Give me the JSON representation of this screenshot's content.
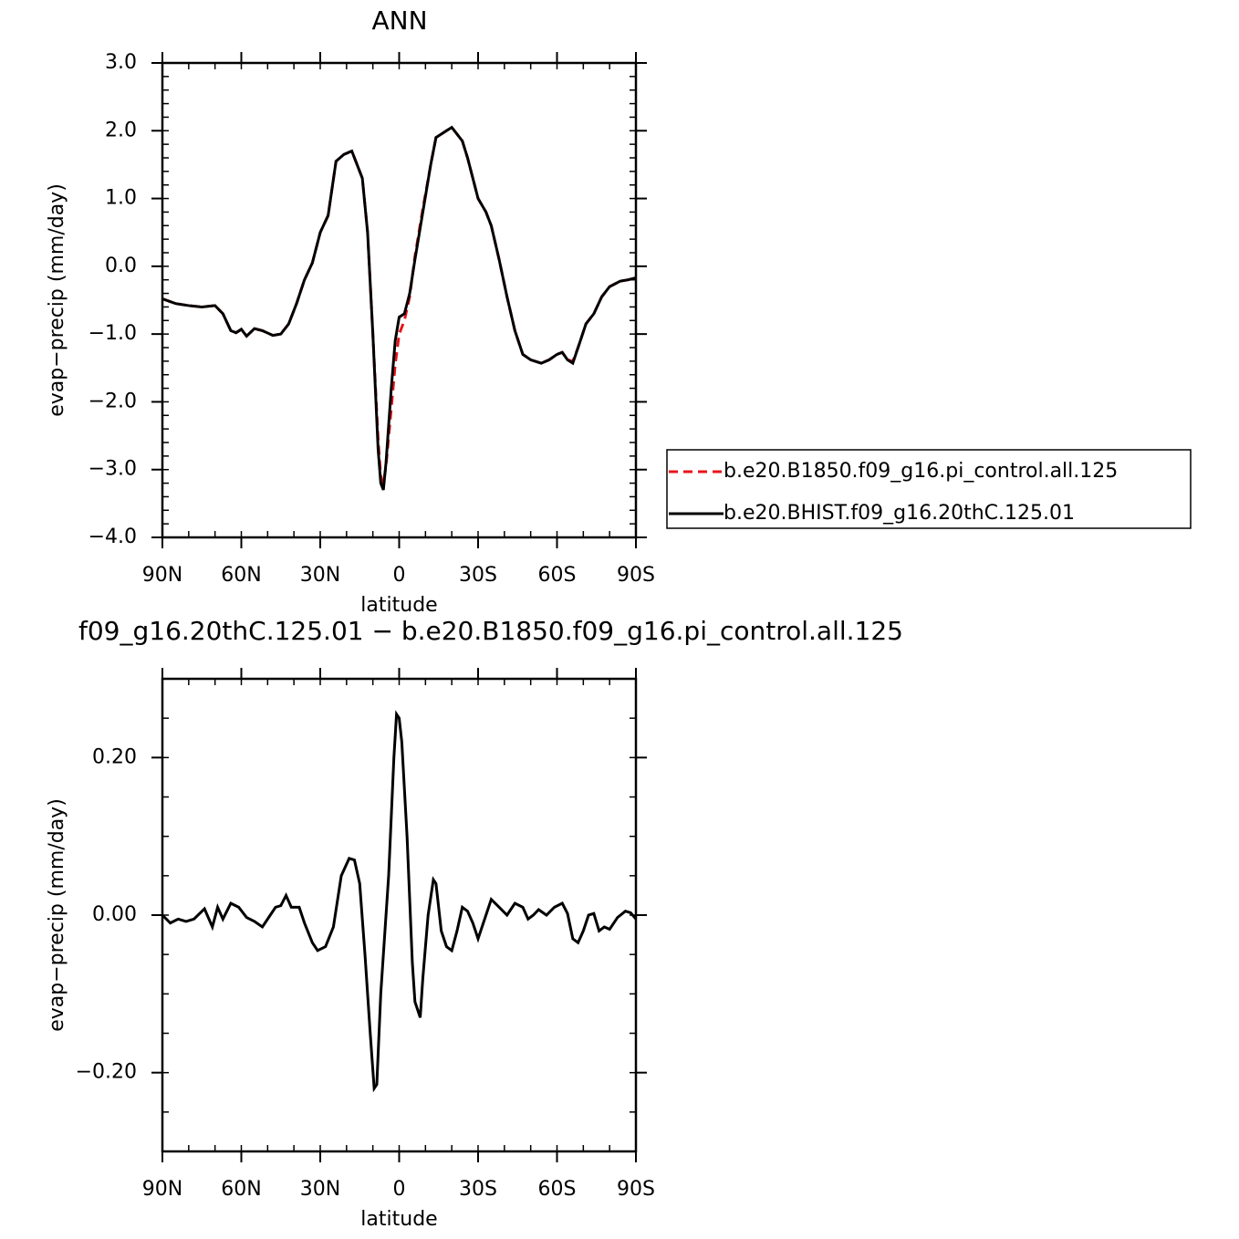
{
  "chart_data": [
    {
      "type": "line",
      "title": "ANN",
      "xlabel": "latitude",
      "ylabel": "evap−precip (mm/day)",
      "x": [
        90,
        85,
        80,
        75,
        70,
        67,
        64,
        62,
        60,
        58,
        55,
        52,
        48,
        45,
        42,
        39,
        36,
        33,
        30,
        27,
        24,
        21,
        18,
        16,
        14,
        12,
        10,
        8,
        7,
        6,
        5,
        3,
        1.5,
        0,
        -2,
        -4,
        -6,
        -9,
        -12,
        -14,
        -16,
        -18,
        -20,
        -22,
        -24,
        -26,
        -28,
        -30,
        -33,
        -35,
        -38,
        -41,
        -44,
        -47,
        -50,
        -54,
        -57,
        -60,
        -62,
        -64,
        -66,
        -68,
        -71,
        -74,
        -77,
        -80,
        -84,
        -87,
        -90
      ],
      "series": [
        {
          "name": "b.e20.B1850.f09_g16.pi_control.all.125",
          "color": "#e8141a",
          "line_style": "dashed",
          "values": [
            -0.48,
            -0.55,
            -0.58,
            -0.6,
            -0.58,
            -0.7,
            -0.95,
            -0.98,
            -0.93,
            -1.03,
            -0.92,
            -0.95,
            -1.02,
            -1.0,
            -0.85,
            -0.55,
            -0.2,
            0.05,
            0.5,
            0.75,
            1.55,
            1.65,
            1.7,
            1.5,
            1.3,
            0.5,
            -1.0,
            -2.55,
            -3.1,
            -3.2,
            -2.95,
            -2.1,
            -1.45,
            -1.0,
            -0.8,
            -0.45,
            0.15,
            0.85,
            1.5,
            1.9,
            1.95,
            2.0,
            2.05,
            1.95,
            1.85,
            1.6,
            1.3,
            1.0,
            0.8,
            0.6,
            0.1,
            -0.45,
            -0.95,
            -1.3,
            -1.38,
            -1.43,
            -1.38,
            -1.3,
            -1.27,
            -1.38,
            -1.4,
            -1.2,
            -0.85,
            -0.7,
            -0.45,
            -0.3,
            -0.22,
            -0.2,
            -0.17
          ]
        },
        {
          "name": "b.e20.BHIST.f09_g16.20thC.125.01",
          "color": "#000000",
          "line_style": "solid",
          "values": [
            -0.48,
            -0.55,
            -0.58,
            -0.6,
            -0.58,
            -0.7,
            -0.95,
            -0.98,
            -0.93,
            -1.03,
            -0.92,
            -0.95,
            -1.02,
            -1.0,
            -0.85,
            -0.55,
            -0.2,
            0.05,
            0.5,
            0.75,
            1.55,
            1.65,
            1.7,
            1.5,
            1.3,
            0.5,
            -1.0,
            -2.7,
            -3.2,
            -3.3,
            -2.9,
            -1.8,
            -1.1,
            -0.75,
            -0.7,
            -0.4,
            0.1,
            0.8,
            1.5,
            1.9,
            1.95,
            2.0,
            2.05,
            1.95,
            1.85,
            1.6,
            1.3,
            1.0,
            0.8,
            0.6,
            0.1,
            -0.45,
            -0.95,
            -1.3,
            -1.38,
            -1.43,
            -1.38,
            -1.3,
            -1.27,
            -1.38,
            -1.43,
            -1.2,
            -0.85,
            -0.7,
            -0.45,
            -0.3,
            -0.22,
            -0.2,
            -0.17
          ]
        }
      ],
      "xlim": [
        90,
        -90
      ],
      "xticks": [
        {
          "value": 90,
          "label": "90N"
        },
        {
          "value": 60,
          "label": "60N"
        },
        {
          "value": 30,
          "label": "30N"
        },
        0,
        {
          "value": -30,
          "label": "30S"
        },
        {
          "value": -60,
          "label": "60S"
        },
        {
          "value": -90,
          "label": "90S"
        }
      ],
      "ylim": [
        -4,
        3
      ],
      "yticks": [
        {
          "value": -4,
          "label": "−4.0"
        },
        {
          "value": -3,
          "label": "−3.0"
        },
        {
          "value": -2,
          "label": "−2.0"
        },
        {
          "value": -1,
          "label": "−1.0"
        },
        {
          "value": 0,
          "label": "0.0"
        },
        {
          "value": 1,
          "label": "1.0"
        },
        {
          "value": 2,
          "label": "2.0"
        },
        {
          "value": 3,
          "label": "3.0"
        }
      ],
      "legend": "right"
    },
    {
      "type": "line",
      "title": "f09_g16.20thC.125.01 − b.e20.B1850.f09_g16.pi_control.all.125",
      "xlabel": "latitude",
      "ylabel": "evap−precip (mm/day)",
      "x": [
        90,
        87,
        84,
        81,
        78,
        74,
        71,
        69,
        67,
        64,
        61,
        58,
        55,
        52,
        49,
        47,
        45,
        43,
        41,
        38,
        36,
        33,
        31,
        28,
        25,
        22,
        19,
        17,
        15,
        13,
        11,
        9.5,
        8.5,
        7,
        4,
        2,
        1,
        0,
        -1,
        -3,
        -5,
        -6,
        -8,
        -9,
        -11,
        -13,
        -14,
        -16,
        -18,
        -20,
        -22,
        -24,
        -26,
        -28,
        -30,
        -32,
        -35,
        -38,
        -41,
        -44,
        -47,
        -49,
        -51,
        -53,
        -56,
        -59,
        -62,
        -64,
        -66,
        -68,
        -70,
        -72,
        -74,
        -76,
        -78,
        -80,
        -83,
        -86,
        -88,
        -90
      ],
      "series": [
        {
          "color": "#000000",
          "line_style": "solid",
          "values": [
            0,
            -0.01,
            -0.005,
            -0.008,
            -0.005,
            0.008,
            -0.015,
            0.01,
            -0.005,
            0.015,
            0.01,
            -0.003,
            -0.008,
            -0.015,
            0,
            0.01,
            0.012,
            0.025,
            0.01,
            0.01,
            -0.01,
            -0.035,
            -0.045,
            -0.04,
            -0.015,
            0.05,
            0.072,
            0.07,
            0.04,
            -0.05,
            -0.15,
            -0.22,
            -0.215,
            -0.1,
            0.05,
            0.2,
            0.255,
            0.25,
            0.22,
            0.1,
            -0.06,
            -0.11,
            -0.13,
            -0.08,
            0,
            0.045,
            0.04,
            -0.02,
            -0.04,
            -0.045,
            -0.02,
            0.01,
            0.005,
            -0.01,
            -0.03,
            -0.01,
            0.02,
            0.01,
            0,
            0.015,
            0.01,
            -0.005,
            0,
            0.007,
            0,
            0.01,
            0.015,
            0.002,
            -0.03,
            -0.035,
            -0.02,
            0,
            0.002,
            -0.02,
            -0.015,
            -0.018,
            -0.003,
            0.005,
            0.003,
            -0.005
          ]
        }
      ],
      "xlim": [
        90,
        -90
      ],
      "xticks": [
        {
          "value": 90,
          "label": "90N"
        },
        {
          "value": 60,
          "label": "60N"
        },
        {
          "value": 30,
          "label": "30N"
        },
        0,
        {
          "value": -30,
          "label": "30S"
        },
        {
          "value": -60,
          "label": "60S"
        },
        {
          "value": -90,
          "label": "90S"
        }
      ],
      "ylim": [
        -0.3,
        0.3
      ],
      "yticks": [
        {
          "value": -0.2,
          "label": "−0.20"
        },
        {
          "value": 0,
          "label": "0.00"
        },
        {
          "value": 0.2,
          "label": "0.20"
        }
      ]
    }
  ]
}
